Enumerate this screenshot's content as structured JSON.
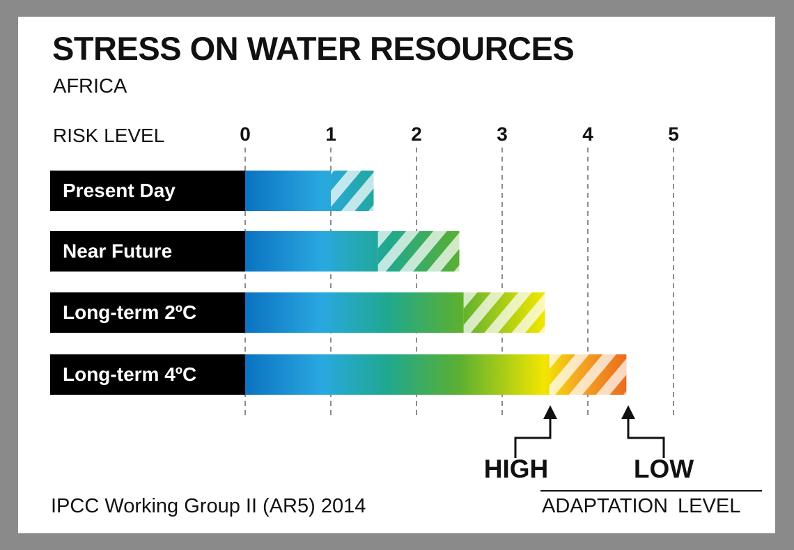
{
  "chart_data": {
    "type": "bar",
    "orientation": "horizontal",
    "title": "STRESS ON WATER RESOURCES",
    "subtitle": "AFRICA",
    "xlabel": "RISK LEVEL",
    "xlim": [
      0,
      5
    ],
    "ticks": [
      "0",
      "1",
      "2",
      "3",
      "4",
      "5"
    ],
    "grid": "dashed vertical lines at each risk level",
    "categories": [
      "Present Day",
      "Near Future",
      "Long-term 2ºC",
      "Long-term 4ºC"
    ],
    "series": [
      {
        "name": "HIGH",
        "values": [
          1.0,
          1.55,
          2.55,
          3.55
        ]
      },
      {
        "name": "LOW",
        "values": [
          1.5,
          2.5,
          3.5,
          4.45
        ]
      }
    ],
    "adaptation_axis_label": "ADAPTATION LEVEL",
    "source": "IPCC Working Group II (AR5) 2014",
    "colors": {
      "row_label_background": "#000000",
      "gradient": [
        "#0b72c1",
        "#29a8e0",
        "#1fa890",
        "#5bb030",
        "#f2e600",
        "#f5a623",
        "#ea6a1d"
      ],
      "hatch_light": "rgba(255,255,255,0.72)",
      "grid": "#8c8c8c"
    }
  }
}
